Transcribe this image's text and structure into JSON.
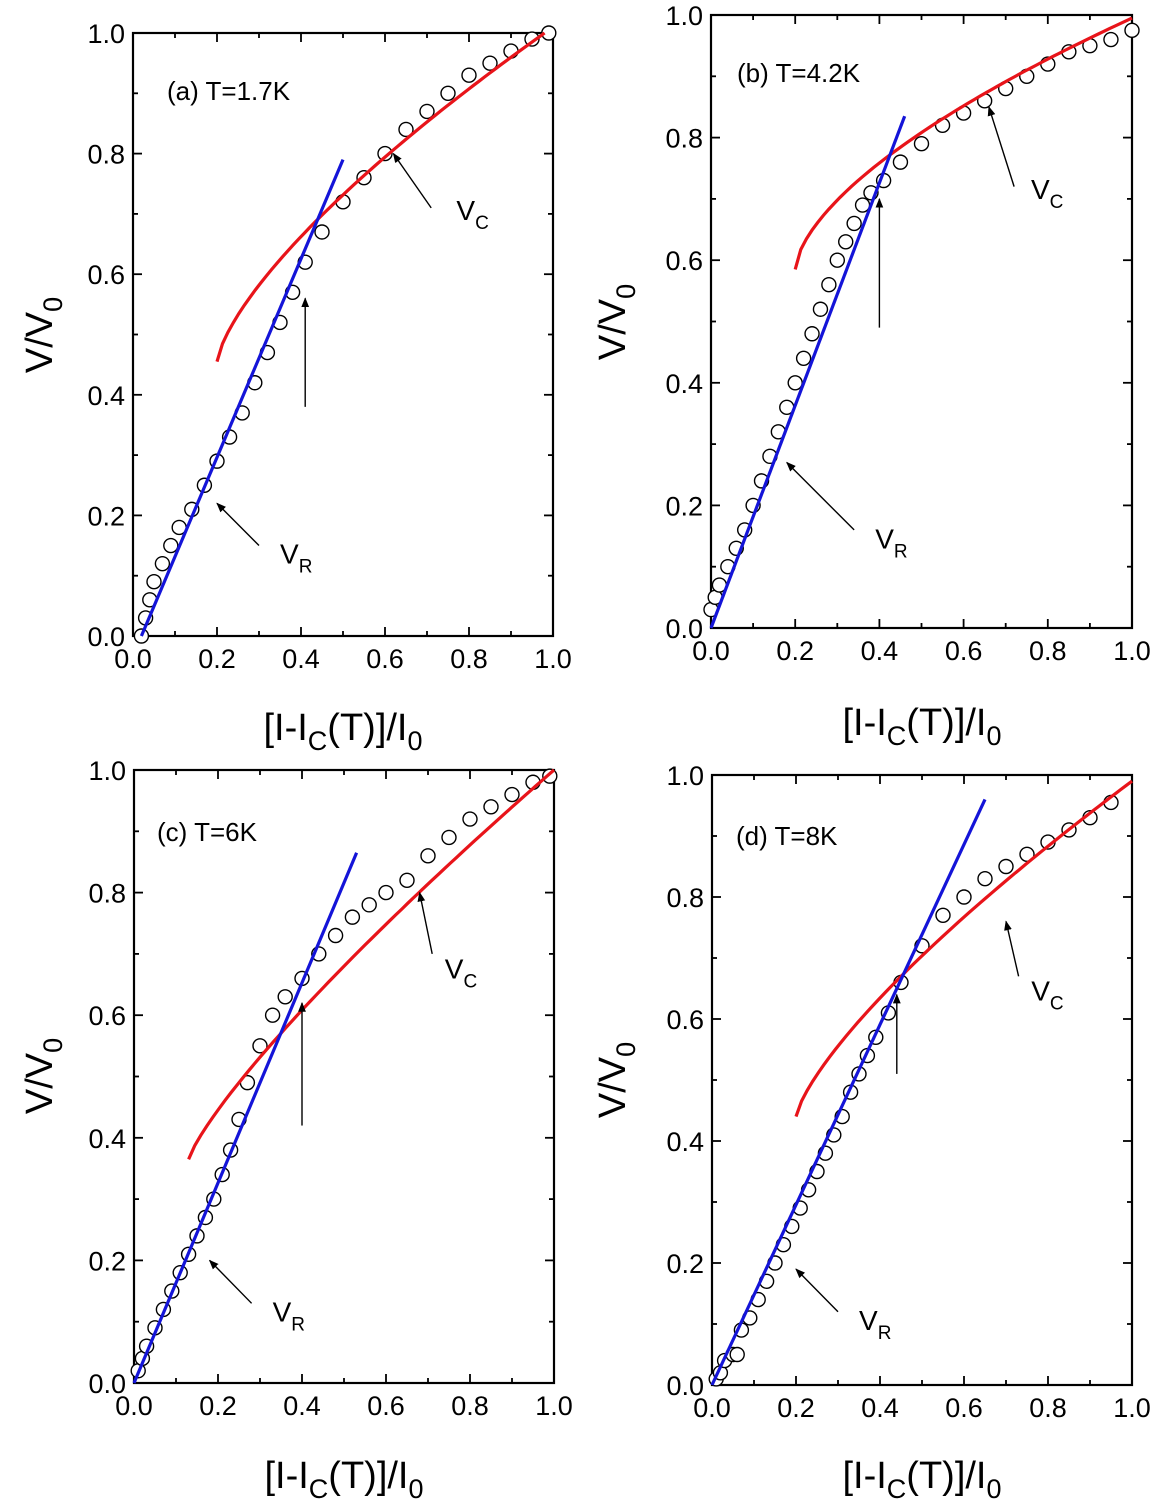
{
  "colors": {
    "fit_red": "#e8141a",
    "fit_blue": "#1414d8",
    "markers": "#000000"
  },
  "chart_data": [
    {
      "type": "scatter",
      "panel_label": "(a) T=1.7K",
      "xlabel": {
        "main": "[I-I",
        "sub1": "C",
        "mid": "(T)]/I",
        "sub2": "0"
      },
      "ylabel": {
        "main": "V/V",
        "sub": "0"
      },
      "xlim": [
        0,
        1
      ],
      "ylim": [
        0,
        1
      ],
      "xticks": [
        "0.0",
        "0.2",
        "0.4",
        "0.6",
        "0.8",
        "1.0"
      ],
      "yticks": [
        "0.0",
        "0.2",
        "0.4",
        "0.6",
        "0.8",
        "1.0"
      ],
      "data_points": [
        [
          0.02,
          0.0
        ],
        [
          0.03,
          0.03
        ],
        [
          0.04,
          0.06
        ],
        [
          0.05,
          0.09
        ],
        [
          0.07,
          0.12
        ],
        [
          0.09,
          0.15
        ],
        [
          0.11,
          0.18
        ],
        [
          0.14,
          0.21
        ],
        [
          0.17,
          0.25
        ],
        [
          0.2,
          0.29
        ],
        [
          0.23,
          0.33
        ],
        [
          0.26,
          0.37
        ],
        [
          0.29,
          0.42
        ],
        [
          0.32,
          0.47
        ],
        [
          0.35,
          0.52
        ],
        [
          0.38,
          0.57
        ],
        [
          0.41,
          0.62
        ],
        [
          0.45,
          0.67
        ],
        [
          0.5,
          0.72
        ],
        [
          0.55,
          0.76
        ],
        [
          0.6,
          0.8
        ],
        [
          0.65,
          0.84
        ],
        [
          0.7,
          0.87
        ],
        [
          0.75,
          0.9
        ],
        [
          0.8,
          0.93
        ],
        [
          0.85,
          0.95
        ],
        [
          0.9,
          0.97
        ],
        [
          0.95,
          0.99
        ],
        [
          0.99,
          1.0
        ]
      ],
      "fit_red": {
        "x_start": 0.2,
        "x_end": 0.98,
        "y_at_start": 0.455,
        "y_at_end": 1.0,
        "exponent": 0.71
      },
      "fit_blue": {
        "x_start": 0.02,
        "x_end": 0.5,
        "y_at_start": 0.0,
        "y_at_end": 0.79
      },
      "annotations": [
        {
          "text": "V",
          "sub": "C",
          "text_xy": [
            0.77,
            0.69
          ],
          "arrow_from": [
            0.71,
            0.71
          ],
          "arrow_to": [
            0.62,
            0.8
          ]
        },
        {
          "text": "V",
          "sub": "R",
          "text_xy": [
            0.35,
            0.12
          ],
          "arrow_from": [
            0.3,
            0.15
          ],
          "arrow_to": [
            0.2,
            0.22
          ]
        },
        {
          "arrow_from": [
            0.41,
            0.38
          ],
          "arrow_to": [
            0.41,
            0.56
          ]
        }
      ]
    },
    {
      "type": "scatter",
      "panel_label": "(b) T=4.2K",
      "xlabel": {
        "main": "[I-I",
        "sub1": "C",
        "mid": "(T)]/I",
        "sub2": "0"
      },
      "ylabel": {
        "main": "V/V",
        "sub": "0"
      },
      "xlim": [
        0,
        1
      ],
      "ylim": [
        0,
        1
      ],
      "xticks": [
        "0.0",
        "0.2",
        "0.4",
        "0.6",
        "0.8",
        "1.0"
      ],
      "yticks": [
        "0.0",
        "0.2",
        "0.4",
        "0.6",
        "0.8",
        "1.0"
      ],
      "data_points": [
        [
          0.0,
          0.03
        ],
        [
          0.01,
          0.05
        ],
        [
          0.02,
          0.07
        ],
        [
          0.04,
          0.1
        ],
        [
          0.06,
          0.13
        ],
        [
          0.08,
          0.16
        ],
        [
          0.1,
          0.2
        ],
        [
          0.12,
          0.24
        ],
        [
          0.14,
          0.28
        ],
        [
          0.16,
          0.32
        ],
        [
          0.18,
          0.36
        ],
        [
          0.2,
          0.4
        ],
        [
          0.22,
          0.44
        ],
        [
          0.24,
          0.48
        ],
        [
          0.26,
          0.52
        ],
        [
          0.28,
          0.56
        ],
        [
          0.3,
          0.6
        ],
        [
          0.32,
          0.63
        ],
        [
          0.34,
          0.66
        ],
        [
          0.36,
          0.69
        ],
        [
          0.38,
          0.71
        ],
        [
          0.41,
          0.73
        ],
        [
          0.45,
          0.76
        ],
        [
          0.5,
          0.79
        ],
        [
          0.55,
          0.82
        ],
        [
          0.6,
          0.84
        ],
        [
          0.65,
          0.86
        ],
        [
          0.7,
          0.88
        ],
        [
          0.75,
          0.9
        ],
        [
          0.8,
          0.92
        ],
        [
          0.85,
          0.94
        ],
        [
          0.9,
          0.95
        ],
        [
          0.95,
          0.96
        ],
        [
          1.0,
          0.975
        ]
      ],
      "fit_red": {
        "x_start": 0.2,
        "x_end": 1.0,
        "y_at_start": 0.585,
        "y_at_end": 0.995,
        "exponent": 0.62
      },
      "fit_blue": {
        "x_start": 0.0,
        "x_end": 0.46,
        "y_at_start": 0.0,
        "y_at_end": 0.835
      },
      "annotations": [
        {
          "text": "V",
          "sub": "C",
          "text_xy": [
            0.76,
            0.7
          ],
          "arrow_from": [
            0.72,
            0.72
          ],
          "arrow_to": [
            0.66,
            0.85
          ]
        },
        {
          "text": "V",
          "sub": "R",
          "text_xy": [
            0.39,
            0.13
          ],
          "arrow_from": [
            0.34,
            0.16
          ],
          "arrow_to": [
            0.18,
            0.27
          ]
        },
        {
          "arrow_from": [
            0.4,
            0.49
          ],
          "arrow_to": [
            0.4,
            0.7
          ]
        }
      ]
    },
    {
      "type": "scatter",
      "panel_label": "(c) T=6K",
      "xlabel": {
        "main": "[I-I",
        "sub1": "C",
        "mid": "(T)]/I",
        "sub2": "0"
      },
      "ylabel": {
        "main": "V/V",
        "sub": "0"
      },
      "xlim": [
        0,
        1
      ],
      "ylim": [
        0,
        1
      ],
      "xticks": [
        "0.0",
        "0.2",
        "0.4",
        "0.6",
        "0.8",
        "1.0"
      ],
      "yticks": [
        "0.0",
        "0.2",
        "0.4",
        "0.6",
        "0.8",
        "1.0"
      ],
      "data_points": [
        [
          0.01,
          0.02
        ],
        [
          0.02,
          0.04
        ],
        [
          0.03,
          0.06
        ],
        [
          0.05,
          0.09
        ],
        [
          0.07,
          0.12
        ],
        [
          0.09,
          0.15
        ],
        [
          0.11,
          0.18
        ],
        [
          0.13,
          0.21
        ],
        [
          0.15,
          0.24
        ],
        [
          0.17,
          0.27
        ],
        [
          0.19,
          0.3
        ],
        [
          0.21,
          0.34
        ],
        [
          0.23,
          0.38
        ],
        [
          0.25,
          0.43
        ],
        [
          0.27,
          0.49
        ],
        [
          0.3,
          0.55
        ],
        [
          0.33,
          0.6
        ],
        [
          0.36,
          0.63
        ],
        [
          0.4,
          0.66
        ],
        [
          0.44,
          0.7
        ],
        [
          0.48,
          0.73
        ],
        [
          0.52,
          0.76
        ],
        [
          0.56,
          0.78
        ],
        [
          0.6,
          0.8
        ],
        [
          0.65,
          0.82
        ],
        [
          0.7,
          0.86
        ],
        [
          0.75,
          0.89
        ],
        [
          0.8,
          0.92
        ],
        [
          0.85,
          0.94
        ],
        [
          0.9,
          0.96
        ],
        [
          0.95,
          0.98
        ],
        [
          0.99,
          0.99
        ]
      ],
      "fit_red": {
        "x_start": 0.13,
        "x_end": 1.0,
        "y_at_start": 0.365,
        "y_at_end": 1.0,
        "exponent": 0.82
      },
      "fit_blue": {
        "x_start": 0.0,
        "x_end": 0.53,
        "y_at_start": 0.0,
        "y_at_end": 0.865
      },
      "annotations": [
        {
          "text": "V",
          "sub": "C",
          "text_xy": [
            0.74,
            0.66
          ],
          "arrow_from": [
            0.71,
            0.7
          ],
          "arrow_to": [
            0.68,
            0.8
          ]
        },
        {
          "text": "V",
          "sub": "R",
          "text_xy": [
            0.33,
            0.1
          ],
          "arrow_from": [
            0.28,
            0.13
          ],
          "arrow_to": [
            0.18,
            0.2
          ]
        },
        {
          "arrow_from": [
            0.4,
            0.42
          ],
          "arrow_to": [
            0.4,
            0.62
          ]
        }
      ]
    },
    {
      "type": "scatter",
      "panel_label": "(d) T=8K",
      "xlabel": {
        "main": "[I-I",
        "sub1": "C",
        "mid": "(T)]/I",
        "sub2": "0"
      },
      "ylabel": {
        "main": "V/V",
        "sub": "0"
      },
      "xlim": [
        0,
        1
      ],
      "ylim": [
        0,
        1
      ],
      "xticks": [
        "0.0",
        "0.2",
        "0.4",
        "0.6",
        "0.8",
        "1.0"
      ],
      "yticks": [
        "0.0",
        "0.2",
        "0.4",
        "0.6",
        "0.8",
        "1.0"
      ],
      "data_points": [
        [
          0.01,
          0.01
        ],
        [
          0.02,
          0.02
        ],
        [
          0.03,
          0.04
        ],
        [
          0.05,
          0.05
        ],
        [
          0.06,
          0.05
        ],
        [
          0.07,
          0.09
        ],
        [
          0.09,
          0.11
        ],
        [
          0.11,
          0.14
        ],
        [
          0.13,
          0.17
        ],
        [
          0.15,
          0.2
        ],
        [
          0.17,
          0.23
        ],
        [
          0.19,
          0.26
        ],
        [
          0.21,
          0.29
        ],
        [
          0.23,
          0.32
        ],
        [
          0.25,
          0.35
        ],
        [
          0.27,
          0.38
        ],
        [
          0.29,
          0.41
        ],
        [
          0.31,
          0.44
        ],
        [
          0.33,
          0.48
        ],
        [
          0.35,
          0.51
        ],
        [
          0.37,
          0.54
        ],
        [
          0.39,
          0.57
        ],
        [
          0.42,
          0.61
        ],
        [
          0.45,
          0.66
        ],
        [
          0.5,
          0.72
        ],
        [
          0.55,
          0.77
        ],
        [
          0.6,
          0.8
        ],
        [
          0.65,
          0.83
        ],
        [
          0.7,
          0.85
        ],
        [
          0.75,
          0.87
        ],
        [
          0.8,
          0.89
        ],
        [
          0.85,
          0.91
        ],
        [
          0.9,
          0.93
        ],
        [
          0.95,
          0.955
        ]
      ],
      "fit_red": {
        "x_start": 0.2,
        "x_end": 1.0,
        "y_at_start": 0.44,
        "y_at_end": 0.99,
        "exponent": 0.75
      },
      "fit_blue": {
        "x_start": 0.0,
        "x_end": 0.65,
        "y_at_start": 0.0,
        "y_at_end": 0.96
      },
      "annotations": [
        {
          "text": "V",
          "sub": "C",
          "text_xy": [
            0.76,
            0.63
          ],
          "arrow_from": [
            0.73,
            0.67
          ],
          "arrow_to": [
            0.7,
            0.76
          ]
        },
        {
          "text": "V",
          "sub": "R",
          "text_xy": [
            0.35,
            0.09
          ],
          "arrow_from": [
            0.3,
            0.12
          ],
          "arrow_to": [
            0.2,
            0.19
          ]
        },
        {
          "arrow_from": [
            0.44,
            0.51
          ],
          "arrow_to": [
            0.44,
            0.64
          ]
        }
      ]
    }
  ]
}
